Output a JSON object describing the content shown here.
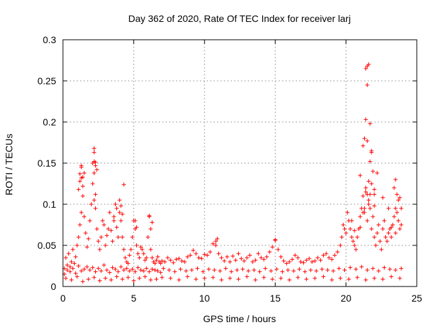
{
  "chart_data": {
    "type": "scatter",
    "title": "Day 362 of 2020, Rate Of TEC Index for receiver larj",
    "xlabel": "GPS time / hours",
    "ylabel": "ROTI / TECUs",
    "xlim": [
      0,
      25
    ],
    "ylim": [
      0,
      0.3
    ],
    "xticks": [
      0,
      5,
      10,
      15,
      20,
      25
    ],
    "xtick_labels": [
      "0",
      "5",
      "10",
      "15",
      "20",
      "25"
    ],
    "yticks": [
      0,
      0.05,
      0.1,
      0.15,
      0.2,
      0.25,
      0.3
    ],
    "ytick_labels": [
      "0",
      "0.05",
      "0.1",
      "0.15",
      "0.2",
      "0.25",
      "0.3"
    ],
    "grid": true,
    "marker": "+",
    "color": "#ff0000",
    "series": [
      {
        "name": "ROTI",
        "x": [
          0.1,
          0.2,
          0.3,
          0.4,
          0.5,
          0.6,
          0.7,
          0.8,
          0.9,
          1.0,
          1.1,
          1.2,
          1.3,
          1.4,
          1.5,
          1.6,
          1.7,
          1.8,
          1.9,
          2.0,
          2.1,
          2.2,
          2.3,
          2.4,
          2.5,
          2.6,
          2.7,
          2.8,
          2.9,
          3.0,
          3.1,
          3.2,
          3.3,
          3.4,
          3.5,
          3.6,
          3.7,
          3.8,
          3.9,
          4.0,
          4.1,
          4.2,
          4.3,
          4.4,
          4.5,
          4.6,
          4.7,
          4.8,
          4.9,
          5.0,
          5.1,
          5.2,
          5.3,
          5.4,
          5.5,
          5.6,
          5.7,
          5.8,
          5.9,
          6.0,
          6.1,
          6.2,
          6.3,
          6.4,
          6.5,
          6.6,
          6.7,
          6.8,
          6.9,
          7.0,
          7.2,
          7.4,
          7.6,
          7.8,
          8.0,
          8.2,
          8.4,
          8.6,
          8.8,
          9.0,
          9.2,
          9.4,
          9.6,
          9.8,
          10.0,
          10.2,
          10.4,
          10.6,
          10.8,
          11.0,
          11.2,
          11.4,
          11.6,
          11.8,
          12.0,
          12.2,
          12.4,
          12.6,
          12.8,
          13.0,
          13.2,
          13.4,
          13.6,
          13.8,
          14.0,
          14.2,
          14.4,
          14.6,
          14.8,
          15.0,
          15.2,
          15.4,
          15.6,
          15.8,
          16.0,
          16.2,
          16.4,
          16.6,
          16.8,
          17.0,
          17.2,
          17.4,
          17.6,
          17.8,
          18.0,
          18.2,
          18.4,
          18.6,
          18.8,
          19.0,
          19.2,
          19.4,
          19.6,
          19.7,
          19.8,
          19.9,
          20.0,
          20.1,
          20.2,
          20.3,
          20.4,
          20.5,
          20.6,
          20.7,
          20.8,
          20.9,
          21.0,
          21.1,
          21.2,
          21.3,
          21.4,
          21.5,
          21.6,
          21.7,
          21.8,
          21.9,
          22.0,
          22.1,
          22.2,
          22.3,
          22.4,
          22.5,
          22.6,
          22.7,
          22.8,
          22.9,
          23.0,
          23.1,
          23.2,
          23.3,
          23.4,
          23.5,
          23.6,
          23.7,
          23.8,
          23.9,
          0.1,
          0.3,
          0.5,
          0.7,
          0.9,
          1.1,
          1.3,
          1.5,
          1.7,
          1.9,
          2.1,
          2.3,
          2.5,
          2.7,
          2.9,
          3.1,
          3.3,
          3.5,
          3.7,
          3.9,
          4.1,
          4.3,
          4.5,
          4.7,
          4.9,
          5.1,
          5.3,
          5.5,
          5.7,
          5.9,
          6.1,
          6.3,
          6.5,
          6.7,
          6.9,
          7.1,
          7.5,
          7.9,
          8.3,
          8.7,
          9.1,
          9.5,
          9.9,
          10.3,
          10.7,
          11.1,
          11.5,
          11.9,
          12.3,
          12.7,
          13.1,
          13.5,
          13.9,
          14.3,
          14.7,
          15.1,
          15.5,
          15.9,
          16.3,
          16.7,
          17.1,
          17.5,
          17.9,
          18.3,
          18.7,
          19.1,
          19.5,
          19.9,
          20.3,
          20.7,
          21.1,
          21.5,
          21.9,
          22.3,
          22.7,
          23.1,
          23.5,
          23.9,
          0.2,
          0.6,
          1.0,
          1.4,
          1.8,
          2.2,
          2.6,
          3.0,
          3.4,
          3.8,
          4.2,
          4.6,
          5.0,
          5.4,
          5.8,
          6.2,
          6.6,
          7.0,
          7.6,
          8.2,
          8.8,
          9.4,
          10.0,
          10.6,
          11.2,
          11.8,
          12.4,
          13.0,
          13.6,
          14.2,
          14.8,
          15.4,
          16.0,
          16.6,
          17.2,
          17.8,
          18.4,
          19.0,
          19.6,
          20.2,
          20.8,
          21.4,
          22.0,
          22.6,
          23.2,
          23.8,
          1.1,
          1.2,
          1.3,
          1.4,
          1.5,
          2.1,
          2.2,
          2.3,
          2.4,
          3.6,
          3.8,
          4.0,
          4.1,
          4.2,
          5.1,
          5.2,
          6.2,
          6.3,
          20.4,
          20.6,
          21.0,
          21.2,
          21.3,
          21.4,
          21.5,
          21.6,
          21.8,
          22.0,
          22.2,
          22.6,
          23.0,
          23.2,
          23.5,
          23.7,
          23.8,
          1.2,
          1.3,
          1.4,
          2.2,
          2.3,
          4.3,
          6.1,
          10.8,
          10.9,
          15.0,
          21.0,
          21.3,
          21.4,
          21.5,
          21.6,
          21.7,
          22.0,
          23.4,
          23.6,
          23.9,
          1.3,
          2.2,
          2.2,
          2.3,
          21.2,
          21.4,
          21.5,
          21.5,
          21.6,
          21.7,
          21.7,
          21.8,
          21.8,
          21.9,
          22.0,
          23.5
        ],
        "y": [
          0.022,
          0.035,
          0.026,
          0.04,
          0.024,
          0.03,
          0.045,
          0.028,
          0.036,
          0.05,
          0.06,
          0.075,
          0.09,
          0.11,
          0.085,
          0.065,
          0.048,
          0.058,
          0.08,
          0.1,
          0.125,
          0.105,
          0.095,
          0.07,
          0.055,
          0.045,
          0.06,
          0.08,
          0.075,
          0.05,
          0.062,
          0.07,
          0.09,
          0.068,
          0.055,
          0.08,
          0.1,
          0.072,
          0.06,
          0.09,
          0.08,
          0.06,
          0.045,
          0.035,
          0.03,
          0.028,
          0.038,
          0.045,
          0.06,
          0.08,
          0.07,
          0.05,
          0.04,
          0.035,
          0.048,
          0.045,
          0.04,
          0.032,
          0.035,
          0.06,
          0.085,
          0.045,
          0.035,
          0.03,
          0.028,
          0.032,
          0.036,
          0.03,
          0.028,
          0.031,
          0.03,
          0.035,
          0.032,
          0.029,
          0.033,
          0.034,
          0.031,
          0.03,
          0.036,
          0.038,
          0.044,
          0.04,
          0.035,
          0.034,
          0.039,
          0.038,
          0.042,
          0.052,
          0.05,
          0.04,
          0.035,
          0.031,
          0.036,
          0.03,
          0.037,
          0.032,
          0.04,
          0.034,
          0.031,
          0.035,
          0.038,
          0.03,
          0.032,
          0.04,
          0.035,
          0.033,
          0.036,
          0.042,
          0.048,
          0.056,
          0.045,
          0.036,
          0.031,
          0.028,
          0.03,
          0.033,
          0.038,
          0.035,
          0.03,
          0.029,
          0.032,
          0.034,
          0.03,
          0.031,
          0.035,
          0.032,
          0.038,
          0.04,
          0.035,
          0.033,
          0.038,
          0.042,
          0.05,
          0.06,
          0.075,
          0.07,
          0.065,
          0.09,
          0.08,
          0.07,
          0.06,
          0.055,
          0.05,
          0.045,
          0.06,
          0.07,
          0.085,
          0.095,
          0.11,
          0.09,
          0.12,
          0.08,
          0.105,
          0.095,
          0.07,
          0.085,
          0.06,
          0.05,
          0.065,
          0.075,
          0.055,
          0.045,
          0.07,
          0.08,
          0.06,
          0.055,
          0.065,
          0.07,
          0.06,
          0.075,
          0.085,
          0.065,
          0.09,
          0.08,
          0.07,
          0.075,
          0.015,
          0.02,
          0.018,
          0.022,
          0.016,
          0.025,
          0.019,
          0.021,
          0.024,
          0.02,
          0.023,
          0.018,
          0.022,
          0.019,
          0.026,
          0.02,
          0.017,
          0.023,
          0.021,
          0.018,
          0.024,
          0.02,
          0.022,
          0.019,
          0.021,
          0.018,
          0.023,
          0.02,
          0.019,
          0.022,
          0.018,
          0.021,
          0.02,
          0.019,
          0.017,
          0.022,
          0.02,
          0.018,
          0.021,
          0.019,
          0.02,
          0.022,
          0.018,
          0.021,
          0.02,
          0.019,
          0.022,
          0.018,
          0.02,
          0.021,
          0.019,
          0.02,
          0.018,
          0.022,
          0.019,
          0.021,
          0.018,
          0.02,
          0.019,
          0.021,
          0.018,
          0.02,
          0.019,
          0.021,
          0.02,
          0.019,
          0.022,
          0.02,
          0.023,
          0.021,
          0.024,
          0.02,
          0.022,
          0.019,
          0.023,
          0.021,
          0.02,
          0.022,
          0.01,
          0.008,
          0.012,
          0.006,
          0.009,
          0.011,
          0.007,
          0.01,
          0.008,
          0.012,
          0.009,
          0.011,
          0.007,
          0.01,
          0.012,
          0.008,
          0.009,
          0.011,
          0.01,
          0.008,
          0.012,
          0.009,
          0.01,
          0.011,
          0.008,
          0.01,
          0.009,
          0.012,
          0.008,
          0.011,
          0.009,
          0.01,
          0.008,
          0.011,
          0.009,
          0.01,
          0.012,
          0.008,
          0.01,
          0.009,
          0.011,
          0.008,
          0.01,
          0.009,
          0.012,
          0.01,
          0.118,
          0.128,
          0.145,
          0.122,
          0.138,
          0.15,
          0.138,
          0.112,
          0.142,
          0.085,
          0.095,
          0.105,
          0.098,
          0.088,
          0.08,
          0.072,
          0.07,
          0.078,
          0.08,
          0.068,
          0.072,
          0.09,
          0.095,
          0.115,
          0.112,
          0.1,
          0.125,
          0.112,
          0.138,
          0.108,
          0.095,
          0.072,
          0.095,
          0.105,
          0.108,
          0.137,
          0.147,
          0.133,
          0.152,
          0.147,
          0.124,
          0.086,
          0.055,
          0.058,
          0.057,
          0.135,
          0.18,
          0.203,
          0.177,
          0.128,
          0.112,
          0.098,
          0.12,
          0.112,
          0.095,
          0.132,
          0.163,
          0.168,
          0.151,
          0.171,
          0.265,
          0.268,
          0.245,
          0.27,
          0.198,
          0.152,
          0.163,
          0.165,
          0.14,
          0.118,
          0.13
        ]
      }
    ]
  }
}
